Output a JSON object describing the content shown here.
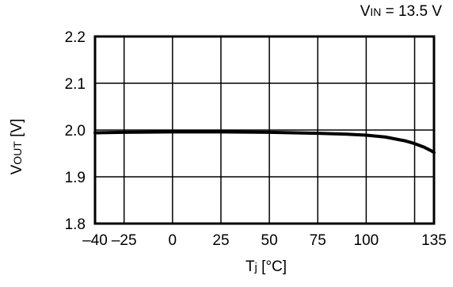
{
  "chart_data": {
    "type": "line",
    "condition": {
      "label_main": "V",
      "label_sub": "IN",
      "text": " = 13.5 V"
    },
    "xlabel": {
      "main": "T",
      "sub": "j",
      "unit": " [°C]"
    },
    "ylabel": {
      "main": "V",
      "sub": "OUT",
      "unit": " [V]"
    },
    "xlim": [
      -40,
      135
    ],
    "ylim": [
      1.8,
      2.2
    ],
    "x_ticks": [
      -40,
      -25,
      0,
      25,
      50,
      75,
      100,
      135
    ],
    "x_tick_labels": [
      "–40",
      "–25",
      "0",
      "25",
      "50",
      "75",
      "100",
      "135"
    ],
    "x_grid": [
      -25,
      0,
      25,
      50,
      75,
      100,
      125
    ],
    "y_ticks": [
      1.8,
      1.9,
      2.0,
      2.1,
      2.2
    ],
    "y_tick_labels": [
      "1.8",
      "1.9",
      "2.0",
      "2.1",
      "2.2"
    ],
    "grid": true,
    "series": [
      {
        "x": [
          -40,
          -25,
          0,
          25,
          50,
          75,
          90,
          100,
          110,
          120,
          125,
          130,
          133,
          135
        ],
        "y": [
          1.994,
          1.995,
          1.996,
          1.996,
          1.995,
          1.993,
          1.991,
          1.989,
          1.985,
          1.977,
          1.971,
          1.963,
          1.957,
          1.952
        ]
      }
    ]
  }
}
